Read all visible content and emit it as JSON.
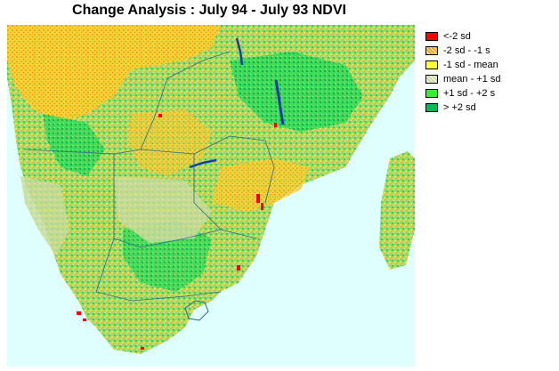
{
  "title": "Change Analysis : July 94 - July 93 NDVI",
  "legend": {
    "items": [
      {
        "label": "<-2 sd",
        "color": "#ff0000",
        "pattern": "solid"
      },
      {
        "label": "-2 sd - -1 s",
        "color": "#ffa500",
        "pattern": "dotted"
      },
      {
        "label": "-1 sd - mean",
        "color": "#ffff33",
        "pattern": "solid"
      },
      {
        "label": "mean - +1 sd",
        "color": "#c9d9a0",
        "pattern": "dotted"
      },
      {
        "label": "+1 sd - +2 s",
        "color": "#33ee33",
        "pattern": "solid"
      },
      {
        "label": "> +2 sd",
        "color": "#00bb55",
        "pattern": "solid"
      }
    ]
  },
  "map": {
    "ocean_color": "#dfffff",
    "lake_color": "#3a7fa0",
    "border_color": "#2a6a8a"
  }
}
